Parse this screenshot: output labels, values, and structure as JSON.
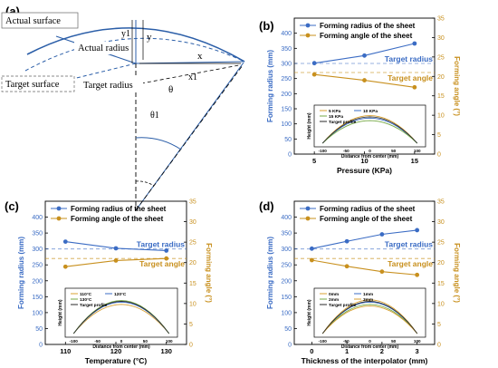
{
  "figure": {
    "panel_labels": [
      "(a)",
      "(b)",
      "(c)",
      "(d)"
    ],
    "colors": {
      "radius": "#3b6cc4",
      "angle": "#c8901e",
      "diagram_blue": "#2b5ea8",
      "inset_lines": [
        "#d8a030",
        "#3b6cc4",
        "#74a844",
        "#2a2a2a"
      ]
    }
  },
  "diagram": {
    "labels": {
      "actual_surface": "Actual surface",
      "actual_radius": "Actual radius",
      "target_surface": "Target surface",
      "target_radius": "Target radius",
      "y1": "y1",
      "y": "y",
      "x": "x",
      "x1": "x1",
      "theta": "θ",
      "theta1": "θ1"
    }
  },
  "chart_data": [
    {
      "panel": "(b)",
      "type": "line",
      "xlabel": "Pressure (KPa)",
      "ylabel": "Forming radius (mm)",
      "y2label": "Forming angle (°)",
      "x": [
        5,
        10,
        15
      ],
      "xlim": [
        3,
        17
      ],
      "xticks": [
        5,
        10,
        15
      ],
      "ylim": [
        0,
        450
      ],
      "yticks": [
        0,
        50,
        100,
        150,
        200,
        250,
        300,
        350,
        400
      ],
      "y2lim": [
        0,
        35
      ],
      "y2ticks": [
        0,
        5,
        10,
        15,
        20,
        25,
        30,
        35
      ],
      "series": [
        {
          "name": "Forming radius of the sheet",
          "axis": "left",
          "values": [
            301,
            326,
            366
          ]
        },
        {
          "name": "Forming angle of the sheet",
          "axis": "right",
          "values": [
            20.5,
            19.0,
            17.2
          ]
        }
      ],
      "target_radius": {
        "label": "Target radius",
        "value": 300
      },
      "target_angle": {
        "label": "Target angle",
        "value": 21
      },
      "legend": "top-left",
      "inset": {
        "xlabel": "Distance from center (mm)",
        "ylabel": "Height (mm)",
        "xticks": [
          -100,
          -50,
          0,
          50,
          100
        ],
        "legend": [
          "5 KPa",
          "10 KPa",
          "15 KPa",
          "Target profile"
        ],
        "peaks": [
          22,
          20,
          18,
          21
        ]
      }
    },
    {
      "panel": "(c)",
      "type": "line",
      "xlabel": "Temperature (°C)",
      "ylabel": "Forming radius (mm)",
      "y2label": "Forming angle (°)",
      "x": [
        110,
        120,
        130
      ],
      "xlim": [
        106,
        134
      ],
      "xticks": [
        110,
        120,
        130
      ],
      "ylim": [
        0,
        450
      ],
      "yticks": [
        0,
        50,
        100,
        150,
        200,
        250,
        300,
        350,
        400
      ],
      "y2lim": [
        0,
        35
      ],
      "y2ticks": [
        0,
        5,
        10,
        15,
        20,
        25,
        30,
        35
      ],
      "series": [
        {
          "name": "Forming radius of the sheet",
          "axis": "left",
          "values": [
            323,
            302,
            295
          ]
        },
        {
          "name": "Forming angle of the sheet",
          "axis": "right",
          "values": [
            19.0,
            20.5,
            21.0
          ]
        }
      ],
      "target_radius": {
        "label": "Target radius",
        "value": 300
      },
      "target_angle": {
        "label": "Target angle",
        "value": 21
      },
      "legend": "top-left",
      "inset": {
        "xlabel": "Distance from center (mm)",
        "ylabel": "Height (mm)",
        "xticks": [
          -100,
          -50,
          0,
          50,
          100
        ],
        "legend": [
          "110°C",
          "120°C",
          "130°C",
          "Target profile"
        ],
        "peaks": [
          19,
          20.5,
          21.5,
          21
        ]
      }
    },
    {
      "panel": "(d)",
      "type": "line",
      "xlabel": "Thickness of the interpolator (mm)",
      "ylabel": "Forming radius (mm)",
      "y2label": "Forming angle (°)",
      "x": [
        0,
        1,
        2,
        3
      ],
      "xlim": [
        -0.5,
        3.5
      ],
      "xticks": [
        0,
        1,
        2,
        3
      ],
      "ylim": [
        0,
        450
      ],
      "yticks": [
        0,
        50,
        100,
        150,
        200,
        250,
        300,
        350,
        400
      ],
      "y2lim": [
        0,
        35
      ],
      "y2ticks": [
        0,
        5,
        10,
        15,
        20,
        25,
        30,
        35
      ],
      "series": [
        {
          "name": "Forming radius of the sheet",
          "axis": "left",
          "values": [
            301,
            324,
            346,
            359
          ]
        },
        {
          "name": "Forming angle of the sheet",
          "axis": "right",
          "values": [
            20.6,
            19.1,
            17.8,
            17.0
          ]
        }
      ],
      "target_radius": {
        "label": "Target radius",
        "value": 300
      },
      "target_angle": {
        "label": "Target angle",
        "value": 21
      },
      "legend": "top-left",
      "inset": {
        "xlabel": "Distance from center (mm)",
        "ylabel": "Height (mm)",
        "xticks": [
          -100,
          -50,
          0,
          50,
          100
        ],
        "legend": [
          "0mm",
          "1mm",
          "2mm",
          "3mm",
          "Target profile"
        ],
        "peaks": [
          22,
          20.5,
          19,
          18,
          21
        ]
      }
    }
  ]
}
